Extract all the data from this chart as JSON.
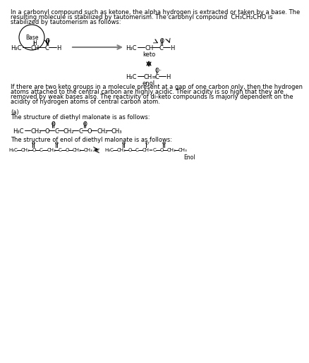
{
  "bg_color": "#ffffff",
  "text_color": "#000000",
  "para1_l1": "In a carbonyl compound such as ketone, the alpha hydrogen is extracted or taken by a base. The",
  "para1_l2": "resulting molecule is stabilized by tautomerism. The carbonyl compound  CH₃CH₂CHO is",
  "para1_l3": "stabilized by tautomerism as follows:",
  "para2_l1": "If there are two keto groups in a molecule present at a gap of one carbon only, then the hydrogen",
  "para2_l2": "atoms attached to the central carbon are highly acidic. Their acidity is so high that they are",
  "para2_l3": "removed by weak bases also. The reactivity of di-keto compounds is majorly dependent on the",
  "para2_l4": "acidity of hydrogen atoms of central carbon atom.",
  "label_a": "(a)",
  "para3": "The structure of diethyl malonate is as follows:",
  "para4": "The structure of enol of diethyl malonate is as follows:",
  "keto_label": "keto",
  "enol_label": "enol",
  "enol_label2": "Enol",
  "base_label": "Base",
  "font_size_body": 6,
  "font_size_small": 5,
  "font_size_chem": 5.5
}
